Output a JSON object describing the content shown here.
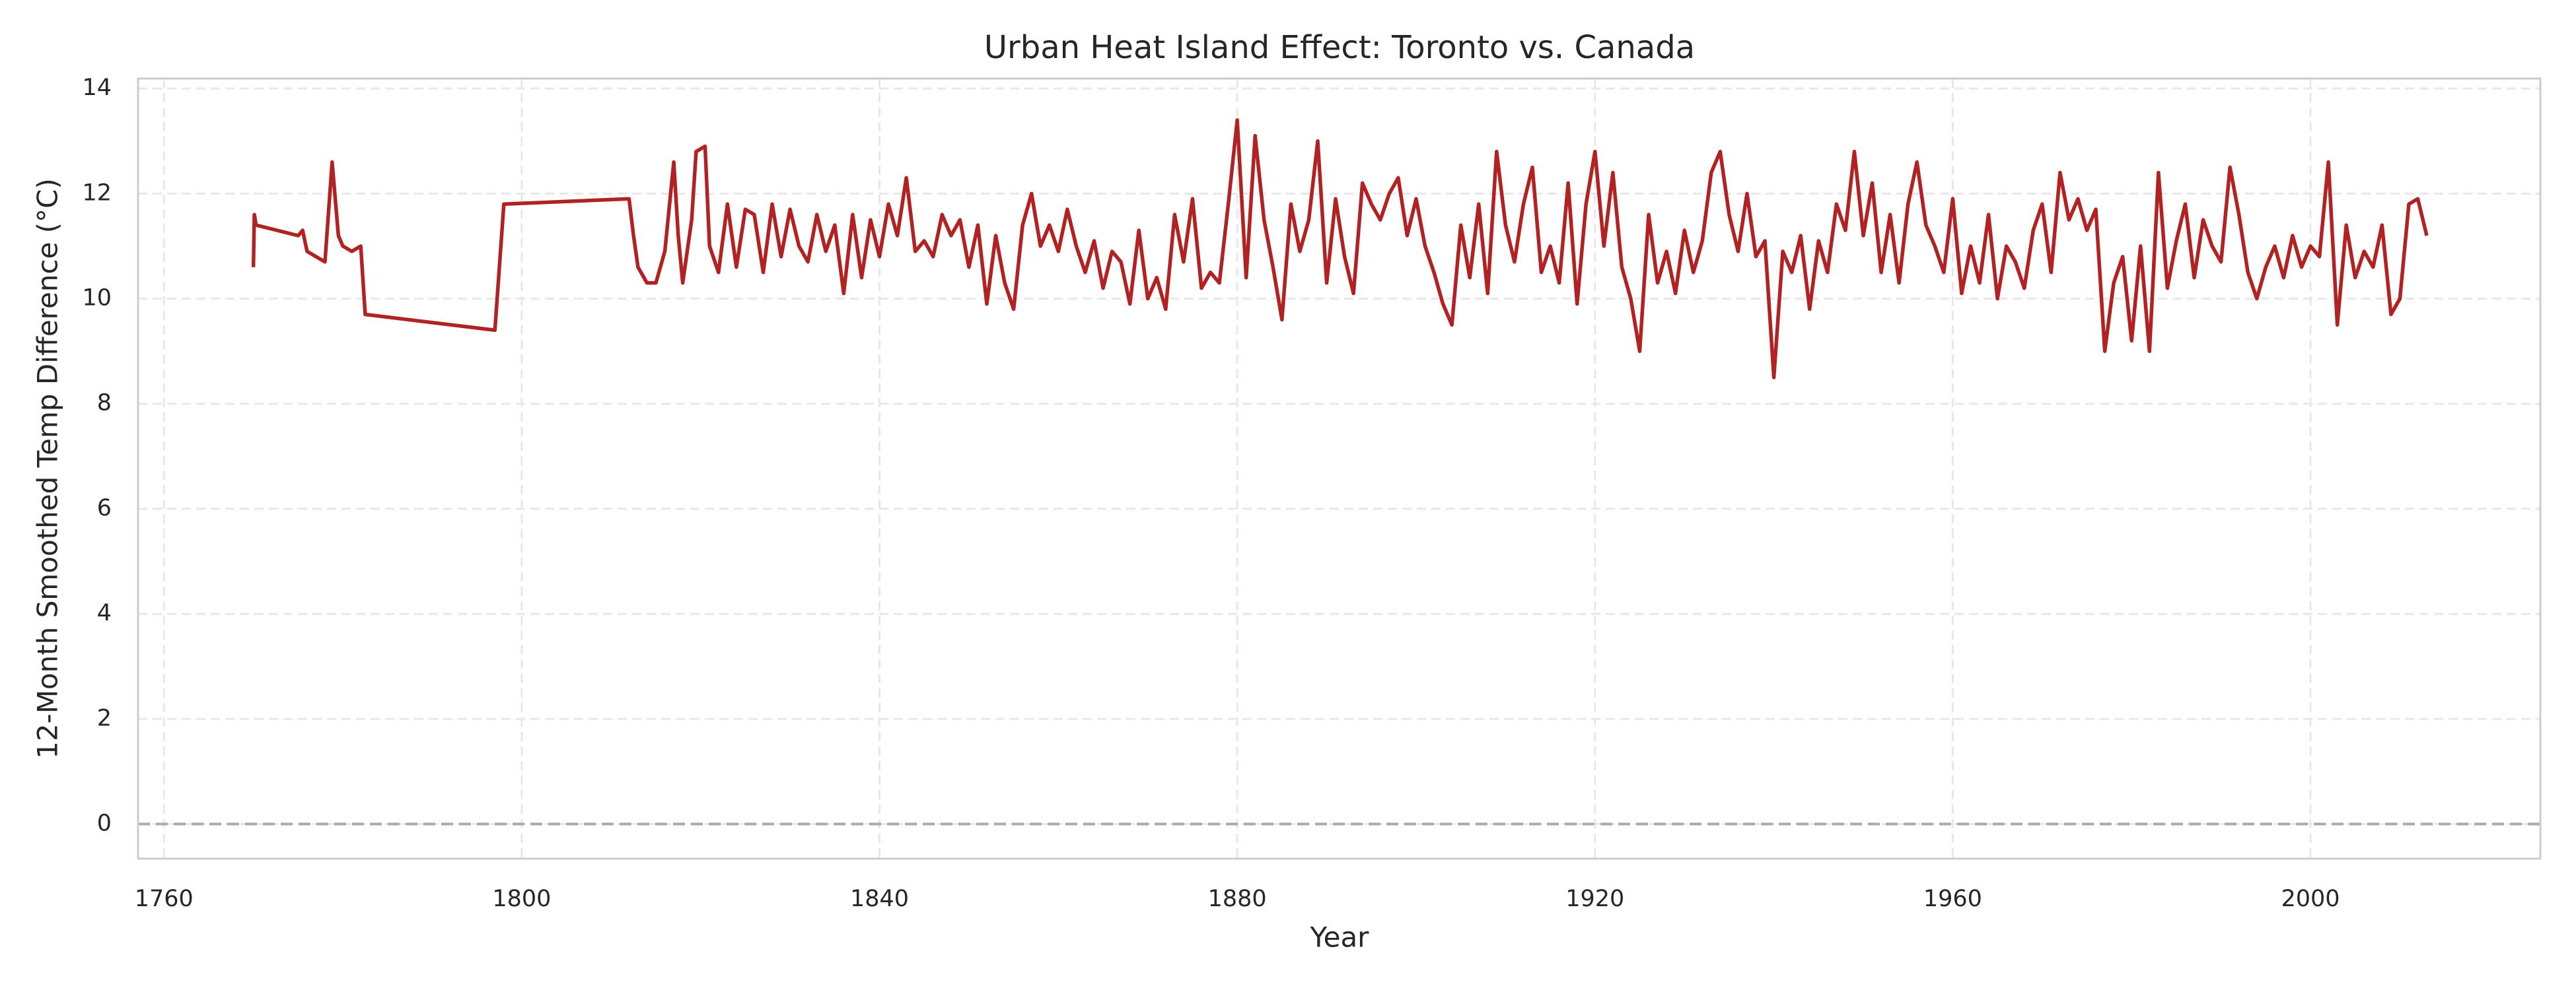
{
  "chart_data": {
    "type": "line",
    "title": "Urban Heat Island Effect: Toronto vs. Canada",
    "xlabel": "Year",
    "ylabel": "12-Month Smoothed Temp Difference (°C)",
    "xlim": [
      1757.1,
      2025.7
    ],
    "ylim": [
      -0.66,
      14.19
    ],
    "xticks": [
      1760,
      1800,
      1840,
      1880,
      1920,
      1960,
      2000
    ],
    "yticks": [
      0,
      2,
      4,
      6,
      8,
      10,
      12,
      14
    ],
    "grid": true,
    "reference_line": {
      "y": 0,
      "color": "#aaaaaa"
    },
    "series": [
      {
        "name": "12-Month Smoothed Temp Difference",
        "color": "#b22222",
        "x": [
          1770,
          1770.1,
          1770.3,
          1775,
          1775.5,
          1776,
          1777,
          1778,
          1778.8,
          1779.5,
          1780,
          1781,
          1782,
          1782.5,
          1797,
          1797.5,
          1798,
          1812,
          1812.5,
          1813,
          1814,
          1815,
          1816,
          1817,
          1817.5,
          1818,
          1819,
          1819.5,
          1820.5,
          1821,
          1822,
          1823,
          1824,
          1825,
          1826,
          1827,
          1828,
          1829,
          1830,
          1831,
          1832,
          1833,
          1834,
          1835,
          1836,
          1837,
          1838,
          1839,
          1840,
          1841,
          1842,
          1843,
          1844,
          1845,
          1846,
          1847,
          1848,
          1849,
          1850,
          1851,
          1852,
          1853,
          1854,
          1855,
          1856,
          1857,
          1858,
          1859,
          1860,
          1861,
          1862,
          1863,
          1864,
          1865,
          1866,
          1867,
          1868,
          1869,
          1870,
          1871,
          1872,
          1873,
          1874,
          1875,
          1876,
          1877,
          1878,
          1879,
          1880,
          1881,
          1882,
          1883,
          1884,
          1885,
          1886,
          1887,
          1888,
          1889,
          1890,
          1891,
          1892,
          1893,
          1894,
          1895,
          1896,
          1897,
          1898,
          1899,
          1900,
          1901,
          1902,
          1903,
          1904,
          1905,
          1906,
          1907,
          1908,
          1909,
          1910,
          1911,
          1912,
          1913,
          1914,
          1915,
          1916,
          1917,
          1918,
          1919,
          1920,
          1921,
          1922,
          1923,
          1924,
          1925,
          1926,
          1927,
          1928,
          1929,
          1930,
          1931,
          1932,
          1933,
          1934,
          1935,
          1936,
          1937,
          1938,
          1939,
          1940,
          1941,
          1942,
          1943,
          1944,
          1945,
          1946,
          1947,
          1948,
          1949,
          1950,
          1951,
          1952,
          1953,
          1954,
          1955,
          1956,
          1957,
          1958,
          1959,
          1960,
          1961,
          1962,
          1963,
          1964,
          1965,
          1966,
          1967,
          1968,
          1969,
          1970,
          1971,
          1972,
          1973,
          1974,
          1975,
          1976,
          1977,
          1978,
          1979,
          1980,
          1981,
          1982,
          1983,
          1984,
          1985,
          1986,
          1987,
          1988,
          1989,
          1990,
          1991,
          1992,
          1993,
          1994,
          1995,
          1996,
          1997,
          1998,
          1999,
          2000,
          2001,
          2002,
          2003,
          2004,
          2005,
          2006,
          2007,
          2008,
          2009,
          2010,
          2011,
          2012,
          2013
        ],
        "values": [
          10.6,
          11.6,
          11.4,
          11.2,
          11.3,
          10.9,
          10.8,
          10.7,
          12.6,
          11.2,
          11.0,
          10.9,
          11.0,
          9.7,
          9.4,
          10.6,
          11.8,
          11.9,
          11.2,
          10.6,
          10.3,
          10.3,
          10.9,
          12.6,
          11.2,
          10.3,
          11.5,
          12.8,
          12.9,
          11.0,
          10.5,
          11.8,
          10.6,
          11.7,
          11.6,
          10.5,
          11.8,
          10.8,
          11.7,
          11.0,
          10.7,
          11.6,
          10.9,
          11.4,
          10.1,
          11.6,
          10.4,
          11.5,
          10.8,
          11.8,
          11.2,
          12.3,
          10.9,
          11.1,
          10.8,
          11.6,
          11.2,
          11.5,
          10.6,
          11.4,
          9.9,
          11.2,
          10.3,
          9.8,
          11.4,
          12.0,
          11.0,
          11.4,
          10.9,
          11.7,
          11.0,
          10.5,
          11.1,
          10.2,
          10.9,
          10.7,
          9.9,
          11.3,
          10.0,
          10.4,
          9.8,
          11.6,
          10.7,
          11.9,
          10.2,
          10.5,
          10.3,
          11.8,
          13.4,
          10.4,
          13.1,
          11.5,
          10.6,
          9.6,
          11.8,
          10.9,
          11.5,
          13.0,
          10.3,
          11.9,
          10.8,
          10.1,
          12.2,
          11.8,
          11.5,
          12.0,
          12.3,
          11.2,
          11.9,
          11.0,
          10.5,
          9.9,
          9.5,
          11.4,
          10.4,
          11.8,
          10.1,
          12.8,
          11.4,
          10.7,
          11.8,
          12.5,
          10.5,
          11.0,
          10.3,
          12.2,
          9.9,
          11.8,
          12.8,
          11.0,
          12.4,
          10.6,
          10.0,
          9.0,
          11.6,
          10.3,
          10.9,
          10.1,
          11.3,
          10.5,
          11.1,
          12.4,
          12.8,
          11.6,
          10.9,
          12.0,
          10.8,
          11.1,
          8.5,
          10.9,
          10.5,
          11.2,
          9.8,
          11.1,
          10.5,
          11.8,
          11.3,
          12.8,
          11.2,
          12.2,
          10.5,
          11.6,
          10.3,
          11.8,
          12.6,
          11.4,
          11.0,
          10.5,
          11.9,
          10.1,
          11.0,
          10.3,
          11.6,
          10.0,
          11.0,
          10.7,
          10.2,
          11.3,
          11.8,
          10.5,
          12.4,
          11.5,
          11.9,
          11.3,
          11.7,
          9.0,
          10.3,
          10.8,
          9.2,
          11.0,
          9.0,
          12.4,
          10.2,
          11.1,
          11.8,
          10.4,
          11.5,
          11.0,
          10.7,
          12.5,
          11.6,
          10.5,
          10.0,
          10.6,
          11.0,
          10.4,
          11.2,
          10.6,
          11.0,
          10.8,
          12.6,
          9.5,
          11.4,
          10.4,
          10.9,
          10.6,
          11.4,
          9.7,
          10.0,
          11.8,
          11.9,
          11.2
        ]
      }
    ]
  }
}
